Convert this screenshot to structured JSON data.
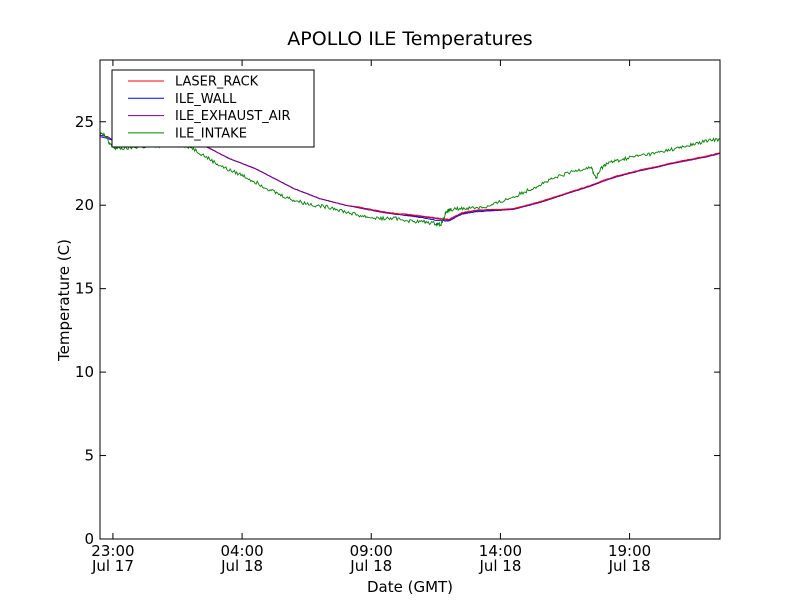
{
  "chart_data": {
    "type": "line",
    "title": "APOLLO ILE Temperatures",
    "xlabel": "Date (GMT)",
    "ylabel": "Temperature (C)",
    "x_unit": "hours since 2015-07-17 22:30 GMT",
    "xlim": [
      0,
      24
    ],
    "ylim": [
      0,
      28.7
    ],
    "grid": false,
    "legend_position": "top-left",
    "x_ticks": [
      {
        "value": 0.5,
        "line1": "23:00",
        "line2": "Jul 17"
      },
      {
        "value": 5.5,
        "line1": "04:00",
        "line2": "Jul 18"
      },
      {
        "value": 10.5,
        "line1": "09:00",
        "line2": "Jul 18"
      },
      {
        "value": 15.5,
        "line1": "14:00",
        "line2": "Jul 18"
      },
      {
        "value": 20.5,
        "line1": "19:00",
        "line2": "Jul 18"
      }
    ],
    "y_ticks": [
      0,
      5,
      10,
      15,
      20,
      25
    ],
    "y_tick_labels": [
      "0",
      "5",
      "10",
      "15",
      "20",
      "25"
    ],
    "series": [
      {
        "name": "LASER_RACK",
        "color": "#ff0000",
        "x": [
          0,
          0.3,
          0.6,
          1.0,
          1.5,
          2.0,
          2.5,
          3.0,
          3.5,
          4.0,
          4.5,
          5.0,
          5.5,
          6.0,
          6.5,
          7.0,
          7.5,
          8.0,
          8.5,
          9.0,
          9.5,
          10.0,
          10.5,
          11.0,
          11.5,
          12.0,
          12.5,
          13.0,
          13.5,
          14.0,
          14.5,
          15.0,
          15.5,
          16.0,
          16.5,
          17.0,
          17.5,
          18.0,
          18.5,
          19.0,
          19.5,
          20.0,
          20.5,
          21.0,
          21.5,
          22.0,
          22.5,
          23.0,
          23.5,
          24.0
        ],
        "y": [
          24.2,
          24.1,
          23.8,
          23.6,
          23.6,
          23.6,
          23.6,
          23.7,
          23.7,
          23.6,
          23.2,
          22.8,
          22.5,
          22.2,
          21.8,
          21.4,
          21.0,
          20.7,
          20.4,
          20.2,
          20.0,
          19.9,
          19.75,
          19.6,
          19.5,
          19.45,
          19.35,
          19.25,
          19.15,
          19.55,
          19.7,
          19.75,
          19.75,
          19.8,
          20.0,
          20.2,
          20.45,
          20.7,
          20.95,
          21.2,
          21.5,
          21.75,
          21.95,
          22.15,
          22.3,
          22.5,
          22.65,
          22.8,
          22.95,
          23.15
        ]
      },
      {
        "name": "ILE_WALL",
        "color": "#0000ff",
        "x": [
          0,
          0.3,
          0.6,
          1.0,
          1.5,
          2.0,
          2.5,
          3.0,
          3.5,
          4.0,
          4.5,
          5.0,
          5.5,
          6.0,
          6.5,
          7.0,
          7.5,
          8.0,
          8.5,
          9.0,
          9.5,
          10.0,
          10.5,
          11.0,
          11.5,
          12.0,
          12.5,
          13.0,
          13.5,
          14.0,
          14.5,
          15.0,
          15.5,
          16.0,
          16.5,
          17.0,
          17.5,
          18.0,
          18.5,
          19.0,
          19.5,
          20.0,
          20.5,
          21.0,
          21.5,
          22.0,
          22.5,
          23.0,
          23.5,
          24.0
        ],
        "y": [
          24.1,
          24.0,
          23.8,
          23.6,
          23.6,
          23.6,
          23.6,
          23.7,
          23.7,
          23.6,
          23.2,
          22.8,
          22.5,
          22.2,
          21.8,
          21.4,
          21.0,
          20.7,
          20.4,
          20.2,
          20.0,
          19.85,
          19.7,
          19.55,
          19.45,
          19.35,
          19.25,
          19.1,
          19.05,
          19.45,
          19.6,
          19.65,
          19.7,
          19.75,
          19.95,
          20.15,
          20.4,
          20.65,
          20.9,
          21.15,
          21.45,
          21.7,
          21.9,
          22.1,
          22.25,
          22.45,
          22.6,
          22.75,
          22.9,
          23.1
        ]
      },
      {
        "name": "ILE_EXHAUST_AIR",
        "color": "#800080",
        "x": [
          0,
          0.3,
          0.6,
          1.0,
          1.5,
          2.0,
          2.5,
          3.0,
          3.5,
          4.0,
          4.5,
          5.0,
          5.5,
          6.0,
          6.5,
          7.0,
          7.5,
          8.0,
          8.5,
          9.0,
          9.5,
          10.0,
          10.5,
          11.0,
          11.5,
          12.0,
          12.5,
          13.0,
          13.5,
          14.0,
          14.5,
          15.0,
          15.5,
          16.0,
          16.5,
          17.0,
          17.5,
          18.0,
          18.5,
          19.0,
          19.5,
          20.0,
          20.5,
          21.0,
          21.5,
          22.0,
          22.5,
          23.0,
          23.5,
          24.0
        ],
        "y": [
          24.2,
          24.1,
          23.8,
          23.6,
          23.6,
          23.6,
          23.6,
          23.7,
          23.7,
          23.6,
          23.2,
          22.8,
          22.5,
          22.2,
          21.8,
          21.4,
          21.0,
          20.7,
          20.4,
          20.2,
          20.0,
          19.85,
          19.7,
          19.55,
          19.45,
          19.4,
          19.3,
          19.2,
          19.1,
          19.5,
          19.65,
          19.7,
          19.7,
          19.75,
          19.95,
          20.15,
          20.4,
          20.65,
          20.9,
          21.15,
          21.45,
          21.7,
          21.9,
          22.1,
          22.25,
          22.45,
          22.6,
          22.75,
          22.9,
          23.1
        ]
      },
      {
        "name": "ILE_INTAKE",
        "color": "#008000",
        "x": [
          0,
          0.2,
          0.4,
          0.6,
          1.0,
          1.5,
          2.0,
          2.5,
          3.0,
          3.5,
          4.0,
          4.5,
          5.0,
          5.5,
          6.0,
          6.5,
          7.0,
          7.5,
          8.0,
          8.5,
          9.0,
          9.5,
          10.0,
          10.5,
          11.0,
          11.5,
          12.0,
          12.5,
          13.0,
          13.2,
          13.4,
          13.6,
          14.0,
          14.5,
          15.0,
          15.5,
          16.0,
          16.5,
          17.0,
          17.5,
          18.0,
          18.5,
          19.0,
          19.2,
          19.4,
          19.6,
          20.0,
          20.5,
          21.0,
          21.5,
          22.0,
          22.5,
          23.0,
          23.5,
          24.0
        ],
        "y": [
          24.4,
          24.2,
          23.6,
          23.4,
          23.4,
          23.5,
          23.5,
          23.6,
          23.6,
          23.5,
          23.0,
          22.5,
          22.1,
          21.8,
          21.4,
          21.0,
          20.6,
          20.3,
          20.1,
          19.95,
          19.85,
          19.6,
          19.4,
          19.25,
          19.2,
          19.2,
          19.05,
          19.0,
          18.9,
          18.85,
          19.6,
          19.75,
          19.8,
          19.85,
          19.9,
          20.2,
          20.5,
          20.85,
          21.2,
          21.55,
          21.85,
          22.1,
          22.3,
          21.6,
          22.2,
          22.5,
          22.65,
          22.85,
          23.0,
          23.1,
          23.3,
          23.45,
          23.65,
          23.85,
          23.95
        ]
      }
    ]
  }
}
